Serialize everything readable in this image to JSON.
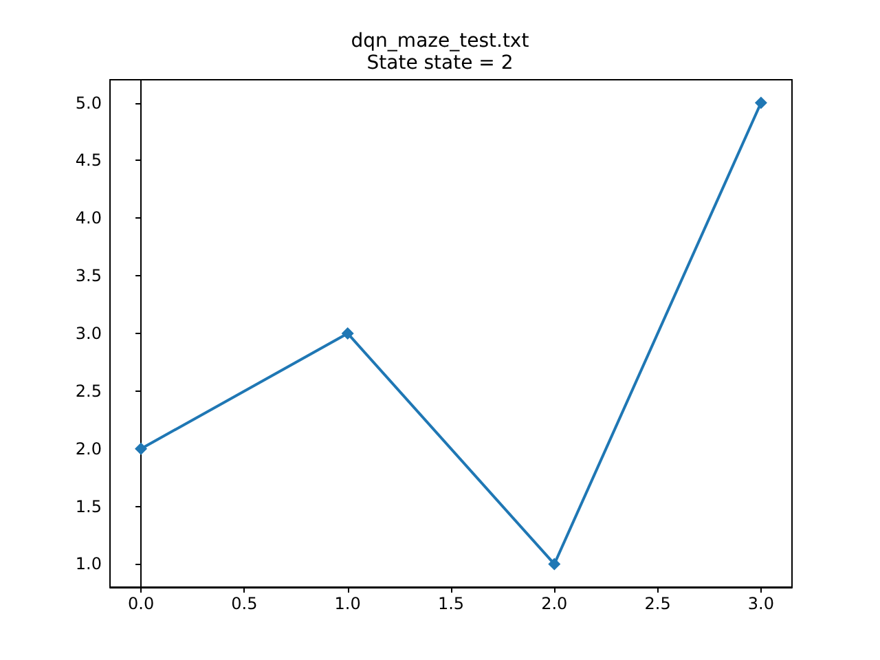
{
  "chart_data": {
    "type": "line",
    "title": "dqn_maze_test.txt",
    "subtitle": "State state = 2",
    "x": [
      0,
      1,
      2,
      3
    ],
    "series": [
      {
        "color": "#1f77b4",
        "values": [
          2,
          3,
          1,
          5
        ]
      }
    ],
    "marker": "diamond",
    "line_style": "solid",
    "xlim": [
      -0.15,
      3.15
    ],
    "ylim": [
      0.8,
      5.2
    ],
    "xticks": [
      {
        "value": 0,
        "label": "0.0"
      },
      {
        "value": 0.5,
        "label": "0.5"
      },
      {
        "value": 1,
        "label": "1.0"
      },
      {
        "value": 1.5,
        "label": "1.5"
      },
      {
        "value": 2,
        "label": "2.0"
      },
      {
        "value": 2.5,
        "label": "2.5"
      },
      {
        "value": 3,
        "label": "3.0"
      }
    ],
    "yticks": [
      {
        "value": 1,
        "label": "1.0"
      },
      {
        "value": 1.5,
        "label": "1.5"
      },
      {
        "value": 2,
        "label": "2.0"
      },
      {
        "value": 2.5,
        "label": "2.5"
      },
      {
        "value": 3,
        "label": "3.0"
      },
      {
        "value": 3.5,
        "label": "3.5"
      },
      {
        "value": 4,
        "label": "4.0"
      },
      {
        "value": 4.5,
        "label": "4.5"
      },
      {
        "value": 5,
        "label": "5.0"
      }
    ]
  }
}
